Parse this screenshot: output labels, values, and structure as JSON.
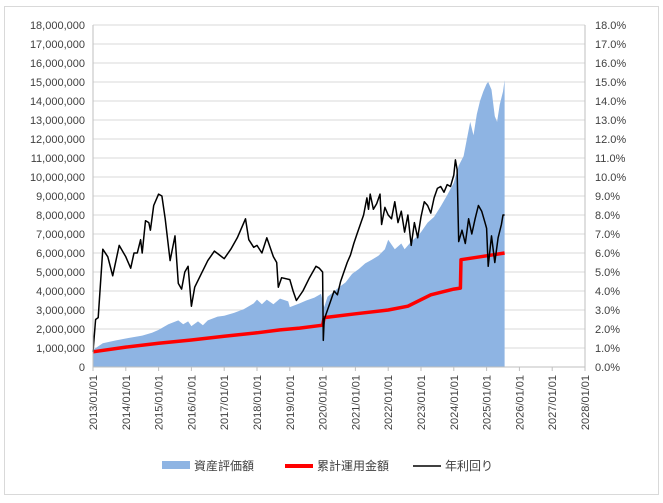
{
  "chart_data": {
    "type": "area+line",
    "title": "",
    "xlabel": "",
    "ylabel_left": "",
    "ylabel_right": "",
    "x_ticks": [
      "2013/01/01",
      "2014/01/01",
      "2015/01/01",
      "2016/01/01",
      "2017/01/01",
      "2018/01/01",
      "2019/01/01",
      "2020/01/01",
      "2021/01/01",
      "2022/01/01",
      "2023/01/01",
      "2024/01/01",
      "2025/01/01",
      "2026/01/01",
      "2027/01/01",
      "2028/01/01"
    ],
    "xlim": [
      2013,
      2028
    ],
    "y_left": {
      "lim": [
        0,
        18000000
      ],
      "ticks": [
        "0",
        "1,000,000",
        "2,000,000",
        "3,000,000",
        "4,000,000",
        "5,000,000",
        "6,000,000",
        "7,000,000",
        "8,000,000",
        "9,000,000",
        "10,000,000",
        "11,000,000",
        "12,000,000",
        "13,000,000",
        "14,000,000",
        "15,000,000",
        "16,000,000",
        "17,000,000",
        "18,000,000"
      ]
    },
    "y_right": {
      "lim": [
        0,
        18
      ],
      "ticks": [
        "0.0%",
        "1.0%",
        "2.0%",
        "3.0%",
        "4.0%",
        "5.0%",
        "6.0%",
        "7.0%",
        "8.0%",
        "9.0%",
        "10.0%",
        "11.0%",
        "12.0%",
        "13.0%",
        "14.0%",
        "15.0%",
        "16.0%",
        "17.0%",
        "18.0%"
      ]
    },
    "grid": "horizontal",
    "legend_position": "bottom",
    "series": [
      {
        "name": "資産評価額",
        "type": "area",
        "axis": "left",
        "color": "#8eb4e3",
        "points": [
          [
            2013.0,
            900000
          ],
          [
            2013.3,
            1250000
          ],
          [
            2013.7,
            1400000
          ],
          [
            2014.0,
            1500000
          ],
          [
            2014.5,
            1650000
          ],
          [
            2014.8,
            1800000
          ],
          [
            2015.0,
            1950000
          ],
          [
            2015.3,
            2250000
          ],
          [
            2015.6,
            2450000
          ],
          [
            2015.75,
            2250000
          ],
          [
            2015.9,
            2400000
          ],
          [
            2016.0,
            2150000
          ],
          [
            2016.2,
            2400000
          ],
          [
            2016.35,
            2200000
          ],
          [
            2016.5,
            2450000
          ],
          [
            2016.8,
            2650000
          ],
          [
            2017.0,
            2700000
          ],
          [
            2017.3,
            2850000
          ],
          [
            2017.6,
            3050000
          ],
          [
            2017.9,
            3350000
          ],
          [
            2018.0,
            3550000
          ],
          [
            2018.15,
            3300000
          ],
          [
            2018.3,
            3550000
          ],
          [
            2018.5,
            3300000
          ],
          [
            2018.7,
            3600000
          ],
          [
            2018.95,
            3450000
          ],
          [
            2019.0,
            3150000
          ],
          [
            2019.3,
            3350000
          ],
          [
            2019.5,
            3500000
          ],
          [
            2019.75,
            3650000
          ],
          [
            2019.95,
            3850000
          ],
          [
            2020.05,
            3150000
          ],
          [
            2020.15,
            3700000
          ],
          [
            2020.3,
            3900000
          ],
          [
            2020.5,
            4200000
          ],
          [
            2020.7,
            4450000
          ],
          [
            2020.9,
            4900000
          ],
          [
            2021.1,
            5150000
          ],
          [
            2021.3,
            5450000
          ],
          [
            2021.5,
            5650000
          ],
          [
            2021.7,
            5850000
          ],
          [
            2021.9,
            6200000
          ],
          [
            2022.0,
            6700000
          ],
          [
            2022.2,
            6200000
          ],
          [
            2022.4,
            6500000
          ],
          [
            2022.5,
            6200000
          ],
          [
            2022.7,
            6600000
          ],
          [
            2022.9,
            6900000
          ],
          [
            2023.0,
            7100000
          ],
          [
            2023.2,
            7600000
          ],
          [
            2023.4,
            7900000
          ],
          [
            2023.6,
            8450000
          ],
          [
            2023.8,
            9050000
          ],
          [
            2024.0,
            9700000
          ],
          [
            2024.15,
            10600000
          ],
          [
            2024.3,
            11100000
          ],
          [
            2024.4,
            12000000
          ],
          [
            2024.5,
            12900000
          ],
          [
            2024.6,
            12200000
          ],
          [
            2024.7,
            13300000
          ],
          [
            2024.8,
            14000000
          ],
          [
            2024.9,
            14500000
          ],
          [
            2025.0,
            14900000
          ],
          [
            2025.05,
            15000000
          ],
          [
            2025.15,
            14600000
          ],
          [
            2025.25,
            13200000
          ],
          [
            2025.32,
            12900000
          ],
          [
            2025.4,
            13800000
          ],
          [
            2025.5,
            14500000
          ],
          [
            2025.55,
            15100000
          ]
        ]
      },
      {
        "name": "累計運用金額",
        "type": "line",
        "axis": "left",
        "color": "#ff0000",
        "points": [
          [
            2013.0,
            800000
          ],
          [
            2014.0,
            1050000
          ],
          [
            2015.0,
            1250000
          ],
          [
            2016.0,
            1420000
          ],
          [
            2017.0,
            1620000
          ],
          [
            2018.0,
            1800000
          ],
          [
            2018.7,
            1950000
          ],
          [
            2019.3,
            2050000
          ],
          [
            2020.0,
            2200000
          ],
          [
            2020.05,
            2600000
          ],
          [
            2021.0,
            2800000
          ],
          [
            2022.0,
            3000000
          ],
          [
            2022.6,
            3200000
          ],
          [
            2023.3,
            3800000
          ],
          [
            2024.0,
            4100000
          ],
          [
            2024.2,
            4150000
          ],
          [
            2024.22,
            5650000
          ],
          [
            2025.0,
            5850000
          ],
          [
            2025.55,
            6000000
          ]
        ]
      },
      {
        "name": "年利回り",
        "type": "line",
        "axis": "right",
        "color": "#000000",
        "points": [
          [
            2013.0,
            0.8
          ],
          [
            2013.08,
            2.5
          ],
          [
            2013.16,
            2.6
          ],
          [
            2013.3,
            6.2
          ],
          [
            2013.45,
            5.8
          ],
          [
            2013.6,
            4.8
          ],
          [
            2013.8,
            6.4
          ],
          [
            2014.0,
            5.8
          ],
          [
            2014.15,
            5.2
          ],
          [
            2014.25,
            6.0
          ],
          [
            2014.35,
            6.0
          ],
          [
            2014.45,
            6.7
          ],
          [
            2014.5,
            6.0
          ],
          [
            2014.6,
            7.7
          ],
          [
            2014.7,
            7.6
          ],
          [
            2014.75,
            7.2
          ],
          [
            2014.85,
            8.5
          ],
          [
            2015.0,
            9.1
          ],
          [
            2015.1,
            9.0
          ],
          [
            2015.2,
            7.8
          ],
          [
            2015.35,
            5.6
          ],
          [
            2015.5,
            6.9
          ],
          [
            2015.6,
            4.4
          ],
          [
            2015.7,
            4.1
          ],
          [
            2015.8,
            5.0
          ],
          [
            2015.9,
            5.3
          ],
          [
            2016.0,
            3.2
          ],
          [
            2016.1,
            4.2
          ],
          [
            2016.3,
            4.9
          ],
          [
            2016.5,
            5.6
          ],
          [
            2016.7,
            6.1
          ],
          [
            2016.85,
            5.9
          ],
          [
            2017.0,
            5.7
          ],
          [
            2017.2,
            6.2
          ],
          [
            2017.4,
            6.8
          ],
          [
            2017.5,
            7.2
          ],
          [
            2017.65,
            7.8
          ],
          [
            2017.75,
            6.7
          ],
          [
            2017.9,
            6.3
          ],
          [
            2018.0,
            6.4
          ],
          [
            2018.15,
            6.0
          ],
          [
            2018.3,
            6.8
          ],
          [
            2018.5,
            5.8
          ],
          [
            2018.6,
            5.5
          ],
          [
            2018.65,
            4.2
          ],
          [
            2018.75,
            4.7
          ],
          [
            2019.0,
            4.6
          ],
          [
            2019.1,
            4.0
          ],
          [
            2019.2,
            3.5
          ],
          [
            2019.4,
            4.0
          ],
          [
            2019.6,
            4.7
          ],
          [
            2019.8,
            5.3
          ],
          [
            2019.9,
            5.2
          ],
          [
            2020.0,
            5.0
          ],
          [
            2020.02,
            1.4
          ],
          [
            2020.05,
            2.5
          ],
          [
            2020.15,
            3.0
          ],
          [
            2020.25,
            3.5
          ],
          [
            2020.35,
            4.0
          ],
          [
            2020.45,
            3.8
          ],
          [
            2020.55,
            4.5
          ],
          [
            2020.65,
            5.0
          ],
          [
            2020.75,
            5.5
          ],
          [
            2020.85,
            5.9
          ],
          [
            2020.95,
            6.5
          ],
          [
            2021.05,
            7.0
          ],
          [
            2021.15,
            7.5
          ],
          [
            2021.25,
            8.0
          ],
          [
            2021.35,
            8.9
          ],
          [
            2021.4,
            8.3
          ],
          [
            2021.45,
            9.1
          ],
          [
            2021.55,
            8.3
          ],
          [
            2021.65,
            8.6
          ],
          [
            2021.75,
            9.1
          ],
          [
            2021.8,
            7.5
          ],
          [
            2021.9,
            8.4
          ],
          [
            2022.0,
            8.0
          ],
          [
            2022.1,
            7.8
          ],
          [
            2022.2,
            8.7
          ],
          [
            2022.3,
            7.6
          ],
          [
            2022.4,
            8.2
          ],
          [
            2022.5,
            7.1
          ],
          [
            2022.6,
            8.0
          ],
          [
            2022.7,
            6.4
          ],
          [
            2022.8,
            7.6
          ],
          [
            2022.9,
            6.8
          ],
          [
            2023.0,
            7.9
          ],
          [
            2023.1,
            8.7
          ],
          [
            2023.2,
            8.5
          ],
          [
            2023.3,
            8.1
          ],
          [
            2023.4,
            8.9
          ],
          [
            2023.5,
            9.4
          ],
          [
            2023.6,
            9.5
          ],
          [
            2023.7,
            9.2
          ],
          [
            2023.8,
            9.6
          ],
          [
            2023.9,
            9.5
          ],
          [
            2024.0,
            10.1
          ],
          [
            2024.05,
            10.9
          ],
          [
            2024.1,
            10.4
          ],
          [
            2024.15,
            6.6
          ],
          [
            2024.25,
            7.2
          ],
          [
            2024.35,
            6.5
          ],
          [
            2024.45,
            7.8
          ],
          [
            2024.55,
            7.0
          ],
          [
            2024.65,
            7.8
          ],
          [
            2024.75,
            8.5
          ],
          [
            2024.85,
            8.2
          ],
          [
            2024.95,
            7.6
          ],
          [
            2025.0,
            7.3
          ],
          [
            2025.05,
            5.3
          ],
          [
            2025.15,
            6.9
          ],
          [
            2025.25,
            5.5
          ],
          [
            2025.35,
            6.8
          ],
          [
            2025.45,
            7.5
          ],
          [
            2025.5,
            8.0
          ],
          [
            2025.55,
            8.0
          ]
        ]
      }
    ]
  }
}
